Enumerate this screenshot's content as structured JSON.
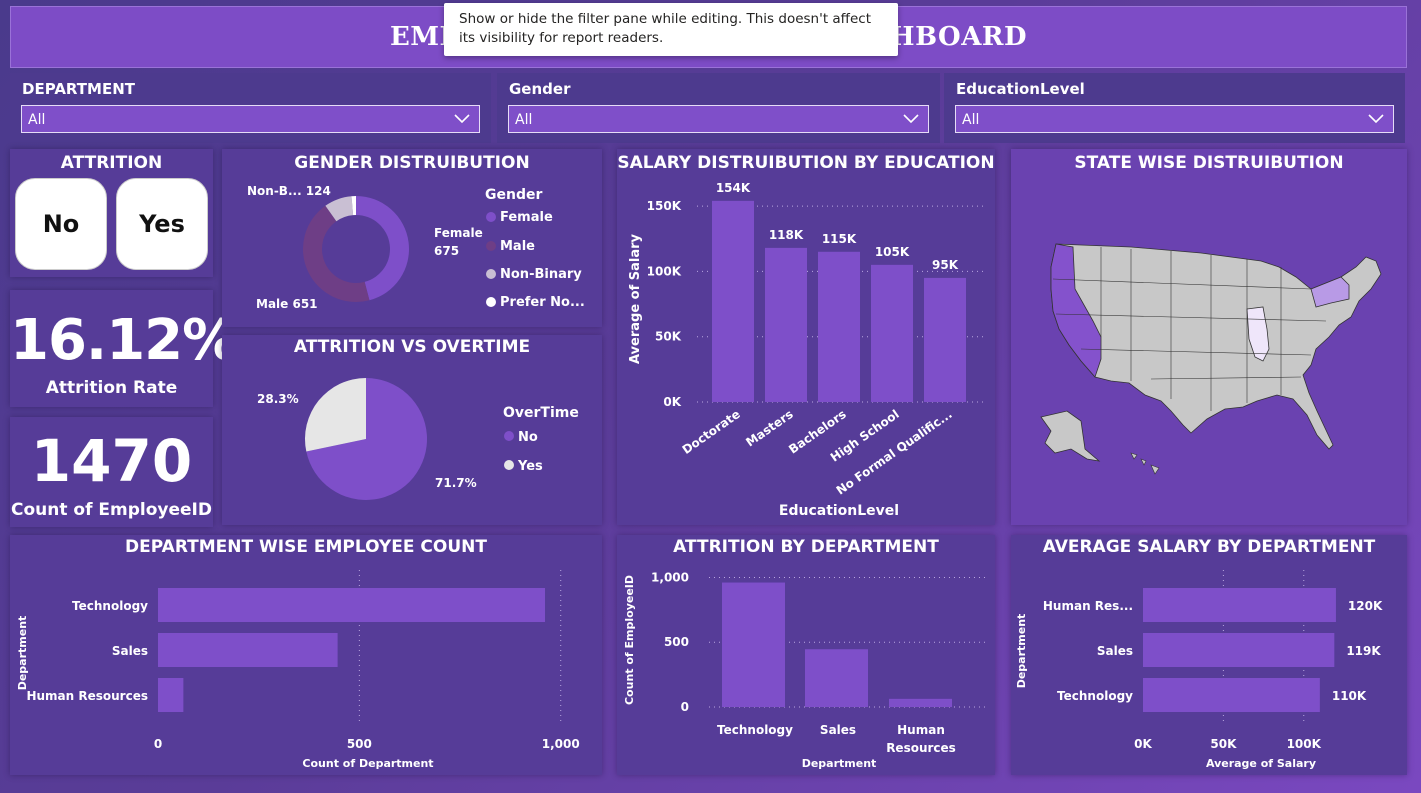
{
  "header": {
    "title": "EMPLOYEE DATA INSIGHTS DASHBOARD",
    "tooltip": "Show or hide the filter pane while editing. This doesn't affect its visibility for report readers."
  },
  "slicers": [
    {
      "label": "DEPARTMENT",
      "value": "All"
    },
    {
      "label": "Gender",
      "value": "All"
    },
    {
      "label": "EducationLevel",
      "value": "All"
    }
  ],
  "attrition": {
    "title": "ATTRITION",
    "no_label": "No",
    "yes_label": "Yes"
  },
  "kpis": {
    "rate_value": "16.12%",
    "rate_label": "Attrition Rate",
    "count_value": "1470",
    "count_label": "Count of EmployeeID"
  },
  "colors": {
    "accent": "#7f4fc9",
    "female": "#7e4fc9",
    "male": "#6e3e86",
    "nonbinary": "#c9bfd3",
    "prefer": "#ffffff",
    "ot_no": "#7e4fc9",
    "ot_yes": "#e6e6e6"
  },
  "gender_chart": {
    "title": "GENDER DISTRUIBUTION",
    "legend_title": "Gender",
    "legend": [
      "Female",
      "Male",
      "Non-Binary",
      "Prefer No..."
    ],
    "labels": {
      "nonb": "Non-B... 124",
      "female": "Female",
      "female_value": "675",
      "male": "Male 651"
    }
  },
  "overtime_chart": {
    "title": "ATTRITION VS OVERTIME",
    "legend_title": "OverTime",
    "legend": [
      "No",
      "Yes"
    ],
    "yes_label": "28.3%",
    "no_label": "71.7%"
  },
  "edu_chart": {
    "title": "SALARY DISTRUIBUTION BY EDUCATION",
    "ylabel": "Average of Salary",
    "xlabel": "EducationLevel",
    "yticks": [
      "150K",
      "100K",
      "50K",
      "0K"
    ],
    "bar_labels": [
      "154K",
      "118K",
      "115K",
      "105K",
      "95K"
    ]
  },
  "state_map": {
    "title": "STATE WISE DISTRUIBUTION"
  },
  "dept_count": {
    "title": "DEPARTMENT WISE EMPLOYEE COUNT",
    "ylabel": "Department",
    "xlabel": "Count of Department",
    "xticks": [
      "0",
      "500",
      "1,000"
    ]
  },
  "attr_dept": {
    "title": "ATTRITION BY DEPARTMENT",
    "ylabel": "Count of EmployeeID",
    "xlabel": "Department",
    "yticks": [
      "1,000",
      "500",
      "0"
    ],
    "cat_labels": [
      "Technology",
      "Sales",
      "Human",
      "Resources"
    ]
  },
  "salary_dept": {
    "title": "AVERAGE SALARY BY DEPARTMENT",
    "ylabel": "Department",
    "xlabel": "Average of Salary",
    "xticks": [
      "0K",
      "50K",
      "100K"
    ],
    "bar_labels": [
      "120K",
      "119K",
      "110K"
    ]
  },
  "chart_data": [
    {
      "type": "pie",
      "title": "GENDER DISTRUIBUTION",
      "categories": [
        "Female",
        "Male",
        "Non-Binary",
        "Prefer Not to Say"
      ],
      "values": [
        675,
        651,
        124,
        20
      ]
    },
    {
      "type": "pie",
      "title": "ATTRITION VS OVERTIME",
      "categories": [
        "No",
        "Yes"
      ],
      "values": [
        71.7,
        28.3
      ]
    },
    {
      "type": "bar",
      "title": "SALARY DISTRUIBUTION BY EDUCATION",
      "categories": [
        "Doctorate",
        "Masters",
        "Bachelors",
        "High School",
        "No Formal Qualific..."
      ],
      "values": [
        154000,
        118000,
        115000,
        105000,
        95000
      ],
      "xlabel": "EducationLevel",
      "ylabel": "Average of Salary",
      "ylim": [
        0,
        160000
      ]
    },
    {
      "type": "bar",
      "title": "DEPARTMENT WISE EMPLOYEE COUNT",
      "categories": [
        "Technology",
        "Sales",
        "Human Resources"
      ],
      "values": [
        961,
        446,
        63
      ],
      "xlabel": "Count of Department",
      "ylabel": "Department",
      "xlim": [
        0,
        1100
      ]
    },
    {
      "type": "bar",
      "title": "ATTRITION BY DEPARTMENT",
      "categories": [
        "Technology",
        "Sales",
        "Human Resources"
      ],
      "values": [
        961,
        446,
        63
      ],
      "xlabel": "Department",
      "ylabel": "Count of EmployeeID",
      "ylim": [
        0,
        1050
      ]
    },
    {
      "type": "bar",
      "title": "AVERAGE SALARY BY DEPARTMENT",
      "categories": [
        "Human Res...",
        "Sales",
        "Technology"
      ],
      "values": [
        120000,
        119000,
        110000
      ],
      "xlabel": "Average of Salary",
      "ylabel": "Department",
      "xlim": [
        0,
        130000
      ]
    }
  ]
}
